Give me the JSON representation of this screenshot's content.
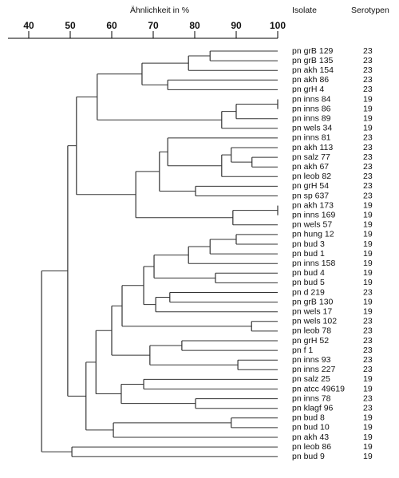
{
  "chart_data": {
    "type": "dendrogram",
    "axis_label": "Ähnlichkeit in %",
    "xlim": [
      35,
      100
    ],
    "xticks": [
      40,
      50,
      60,
      70,
      80,
      90,
      100
    ],
    "column_headers": [
      "Isolate",
      "Serotypen"
    ],
    "isolates": [
      "pn grB 129",
      "pn grB 135",
      "pn akh 154",
      "pn akh 86",
      "pn grH 4",
      "pn inns 84",
      "pn inns 86",
      "pn inns 89",
      "pn wels 34",
      "pn inns 81",
      "pn akh 113",
      "pn salz 77",
      "pn akh 67",
      "pn leob 82",
      "pn grH 54",
      "pn sp 637",
      "pn akh 173",
      "pn inns 169",
      "pn wels 57",
      "pn hung 12",
      "pn bud 3",
      "pn bud 1",
      "pn inns 158",
      "pn bud 4",
      "pn bud 5",
      "pn d 219",
      "pn grB 130",
      "pn wels 17",
      "pn wels 102",
      "pn leob 78",
      "pn grH 52",
      "pn f 1",
      "pn inns 93",
      "pn inns 227",
      "pn salz 25",
      "pn atcc 49619",
      "pn inns 78",
      "pn klagf 96",
      "pn bud 8",
      "pn bud 10",
      "pn akh 43",
      "pn leob 86",
      "pn bud 9"
    ],
    "serotypes": [
      23,
      23,
      23,
      23,
      23,
      19,
      19,
      19,
      19,
      23,
      23,
      23,
      23,
      23,
      23,
      23,
      19,
      19,
      19,
      19,
      19,
      19,
      19,
      19,
      19,
      23,
      19,
      19,
      23,
      23,
      23,
      23,
      23,
      23,
      19,
      19,
      23,
      23,
      19,
      19,
      19,
      19,
      19
    ],
    "color": "#333333",
    "tree": {
      "similarity": 43.1,
      "children": [
        {
          "similarity": 49.4,
          "children": [
            {
              "similarity": 51.5,
              "children": [
                {
                  "similarity": 56.5,
                  "children": [
                    {
                      "similarity": 67.3,
                      "children": [
                        {
                          "similarity": 78.5,
                          "children": [
                            {
                              "similarity": 83.7,
                              "children": [
                                0,
                                1
                              ]
                            },
                            2
                          ]
                        },
                        {
                          "similarity": 73.5,
                          "children": [
                            3,
                            4
                          ]
                        }
                      ]
                    },
                    {
                      "similarity": 86.5,
                      "children": [
                        {
                          "similarity": 90,
                          "children": [
                            {
                              "similarity": 100,
                              "children": [
                                5,
                                6
                              ]
                            },
                            7
                          ]
                        },
                        8
                      ]
                    }
                  ]
                },
                {
                  "similarity": 65.8,
                  "children": [
                    {
                      "similarity": 71.5,
                      "children": [
                        {
                          "similarity": 73.5,
                          "children": [
                            9,
                            {
                              "similarity": 86.5,
                              "children": [
                                {
                                  "similarity": 88.8,
                                  "children": [
                                    10,
                                    {
                                      "similarity": 93.8,
                                      "children": [
                                        11,
                                        12
                                      ]
                                    }
                                  ]
                                },
                                13
                              ]
                            }
                          ]
                        },
                        {
                          "similarity": 80.2,
                          "children": [
                            14,
                            15
                          ]
                        }
                      ]
                    },
                    {
                      "similarity": 89.2,
                      "children": [
                        {
                          "similarity": 100,
                          "children": [
                            16,
                            17
                          ]
                        },
                        18
                      ]
                    }
                  ]
                }
              ]
            },
            {
              "similarity": 53.8,
              "children": [
                {
                  "similarity": 56.2,
                  "children": [
                    {
                      "similarity": 60,
                      "children": [
                        {
                          "similarity": 62.5,
                          "children": [
                            {
                              "similarity": 67.7,
                              "children": [
                                {
                                  "similarity": 70.2,
                                  "children": [
                                    {
                                      "similarity": 78.5,
                                      "children": [
                                        {
                                          "similarity": 83.7,
                                          "children": [
                                            {
                                              "similarity": 90,
                                              "children": [
                                                19,
                                                20
                                              ]
                                            },
                                            21
                                          ]
                                        },
                                        22
                                      ]
                                    },
                                    {
                                      "similarity": 85,
                                      "children": [
                                        23,
                                        24
                                      ]
                                    }
                                  ]
                                },
                                {
                                  "similarity": 70.6,
                                  "children": [
                                    {
                                      "similarity": 74,
                                      "children": [
                                        25,
                                        26
                                      ]
                                    },
                                    27
                                  ]
                                }
                              ]
                            },
                            {
                              "similarity": 93.7,
                              "children": [
                                28,
                                29
                              ]
                            }
                          ]
                        },
                        {
                          "similarity": 69.2,
                          "children": [
                            {
                              "similarity": 76.9,
                              "children": [
                                30,
                                31
                              ]
                            },
                            {
                              "similarity": 90.4,
                              "children": [
                                32,
                                33
                              ]
                            }
                          ]
                        }
                      ]
                    },
                    {
                      "similarity": 62.3,
                      "children": [
                        {
                          "similarity": 67.7,
                          "children": [
                            34,
                            35
                          ]
                        },
                        {
                          "similarity": 80.2,
                          "children": [
                            36,
                            37
                          ]
                        }
                      ]
                    }
                  ]
                },
                {
                  "similarity": 60.4,
                  "children": [
                    {
                      "similarity": 88.8,
                      "children": [
                        38,
                        39
                      ]
                    },
                    40
                  ]
                }
              ]
            }
          ]
        },
        {
          "similarity": 50.4,
          "children": [
            41,
            42
          ]
        }
      ]
    }
  }
}
